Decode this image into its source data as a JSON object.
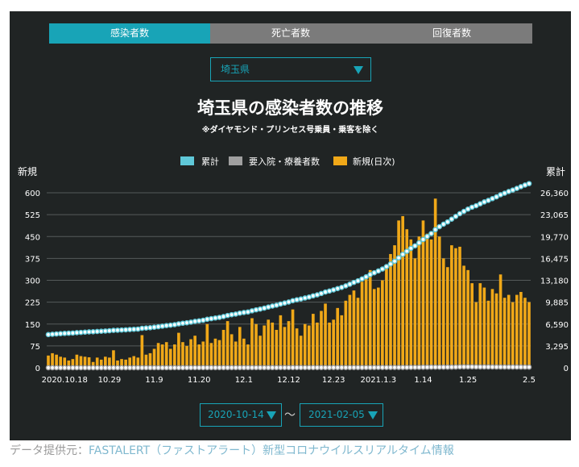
{
  "tabs": [
    "感染者数",
    "死亡者数",
    "回復者数"
  ],
  "prefecture_select": "埼玉県",
  "chart_data": {
    "type": "bar+line",
    "title": "埼玉県の感染者数の推移",
    "subtitle": "※ダイヤモンド・プリンセス号乗員・乗客を除く",
    "legend": [
      "累計",
      "要入院・療養者数",
      "新規(日次)"
    ],
    "legend_position": "top",
    "ylabel_left": "新規",
    "ylabel_right": "累計",
    "left_ticks": [
      "600",
      "525",
      "450",
      "375",
      "300",
      "225",
      "150",
      "75",
      "0"
    ],
    "right_ticks": [
      "26,360",
      "23,065",
      "19,770",
      "16,475",
      "13,180",
      "9,885",
      "6,590",
      "3,295",
      "0"
    ],
    "ylim_left": [
      0,
      600
    ],
    "ylim_right": [
      0,
      26360
    ],
    "x_tick_labels": [
      "2020.10.18",
      "10.29",
      "11.9",
      "11.20",
      "12.1",
      "12.12",
      "12.23",
      "2021.1.3",
      "1.14",
      "1.25",
      "2.5"
    ],
    "x_start": "2020-10-14",
    "x_end": "2021-02-05",
    "grid": true,
    "series": [
      {
        "name": "新規(日次)",
        "color": "#f0a818",
        "values": [
          42,
          50,
          45,
          38,
          35,
          25,
          30,
          45,
          40,
          38,
          36,
          20,
          35,
          28,
          38,
          35,
          60,
          25,
          30,
          28,
          35,
          40,
          35,
          112,
          45,
          50,
          65,
          85,
          80,
          88,
          65,
          80,
          120,
          88,
          75,
          98,
          110,
          80,
          90,
          150,
          85,
          100,
          95,
          130,
          160,
          115,
          90,
          140,
          100,
          80,
          170,
          150,
          110,
          145,
          165,
          155,
          130,
          180,
          140,
          160,
          200,
          135,
          110,
          150,
          145,
          185,
          155,
          195,
          220,
          155,
          165,
          205,
          180,
          230,
          250,
          265,
          240,
          295,
          310,
          335,
          270,
          275,
          300,
          355,
          390,
          420,
          505,
          520,
          475,
          440,
          375,
          450,
          505,
          460,
          440,
          580,
          450,
          375,
          345,
          420,
          410,
          415,
          350,
          335,
          290,
          225,
          290,
          275,
          230,
          270,
          255,
          320,
          240,
          250,
          225,
          250,
          260,
          240,
          225
        ]
      },
      {
        "name": "累計",
        "color": "#5fc8d8",
        "values": [
          5000,
          5050,
          5100,
          5140,
          5180,
          5210,
          5240,
          5290,
          5330,
          5370,
          5410,
          5430,
          5470,
          5500,
          5540,
          5580,
          5640,
          5660,
          5690,
          5720,
          5760,
          5800,
          5830,
          5950,
          5990,
          6040,
          6110,
          6190,
          6270,
          6360,
          6420,
          6500,
          6620,
          6710,
          6780,
          6880,
          6990,
          7070,
          7160,
          7310,
          7400,
          7500,
          7590,
          7720,
          7880,
          8000,
          8090,
          8230,
          8330,
          8410,
          8580,
          8730,
          8840,
          8980,
          9150,
          9300,
          9430,
          9610,
          9750,
          9910,
          10110,
          10250,
          10360,
          10510,
          10650,
          10840,
          10990,
          11190,
          11410,
          11560,
          11730,
          11930,
          12110,
          12340,
          12590,
          12860,
          13100,
          13390,
          13700,
          14040,
          14310,
          14580,
          14880,
          15240,
          15630,
          16050,
          16560,
          17080,
          17550,
          17990,
          18370,
          18820,
          19320,
          19780,
          20220,
          20800,
          21250,
          21630,
          21970,
          22390,
          22800,
          23210,
          23560,
          23900,
          24190,
          24410,
          24700,
          24980,
          25210,
          25480,
          25740,
          26060,
          26300,
          26550,
          26770,
          27020,
          27280,
          27520,
          27740
        ]
      },
      {
        "name": "要入院・療養者数",
        "color": "#a0a0a0",
        "values": [
          10,
          10,
          10,
          10,
          10,
          10,
          10,
          10,
          10,
          10,
          10,
          10,
          10,
          10,
          12,
          12,
          12,
          12,
          12,
          12,
          12,
          13,
          13,
          14,
          14,
          15,
          15,
          16,
          16,
          17,
          17,
          18,
          18,
          19,
          19,
          20,
          21,
          21,
          22,
          23,
          23,
          24,
          25,
          26,
          27,
          27,
          28,
          28,
          29,
          29,
          30,
          30,
          31,
          31,
          32,
          32,
          32,
          33,
          33,
          34,
          34,
          35,
          35,
          35,
          36,
          36,
          37,
          37,
          37,
          38,
          38,
          38,
          38,
          39,
          40,
          41,
          42,
          43,
          45,
          47,
          48,
          50,
          51,
          52,
          54,
          55,
          57,
          59,
          62,
          66,
          70,
          77,
          85,
          92,
          96,
          96,
          96,
          97,
          100,
          104,
          118,
          140,
          150,
          148,
          150,
          137,
          133,
          131,
          127,
          125,
          122,
          120,
          117,
          115,
          112,
          110,
          108,
          105,
          103
        ]
      }
    ]
  },
  "date_range": {
    "start": "2020-10-14",
    "end": "2021-02-05",
    "separator": "〜"
  },
  "source": {
    "prefix": "データ提供元：",
    "link": "FASTALERT（ファストアラート）新型コロナウイルスリアルタイム情報"
  }
}
